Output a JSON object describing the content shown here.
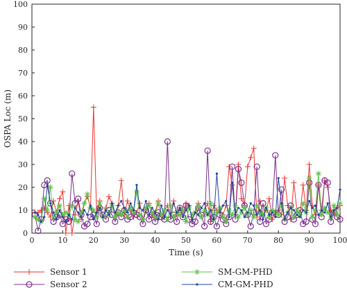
{
  "chart_data": {
    "type": "line",
    "title": "",
    "xlabel": "Time (s)",
    "ylabel": "OSPA Loc (m)",
    "xlim": [
      0,
      100
    ],
    "ylim": [
      0,
      100
    ],
    "xticks": [
      "0",
      "10",
      "20",
      "30",
      "40",
      "50",
      "60",
      "70",
      "80",
      "90",
      "100"
    ],
    "yticks": [
      "0",
      "10",
      "20",
      "30",
      "40",
      "50",
      "60",
      "70",
      "80",
      "90",
      "100"
    ],
    "grid": false,
    "legend_position": "bottom",
    "x": [
      1,
      2,
      3,
      4,
      5,
      6,
      7,
      8,
      9,
      10,
      11,
      12,
      13,
      14,
      15,
      16,
      17,
      18,
      19,
      20,
      21,
      22,
      23,
      24,
      25,
      26,
      27,
      28,
      29,
      30,
      31,
      32,
      33,
      34,
      35,
      36,
      37,
      38,
      39,
      40,
      41,
      42,
      43,
      44,
      45,
      46,
      47,
      48,
      49,
      50,
      51,
      52,
      53,
      54,
      55,
      56,
      57,
      58,
      59,
      60,
      61,
      62,
      63,
      64,
      65,
      66,
      67,
      68,
      69,
      70,
      71,
      72,
      73,
      74,
      75,
      76,
      77,
      78,
      79,
      80,
      81,
      82,
      83,
      84,
      85,
      86,
      87,
      88,
      89,
      90,
      91,
      92,
      93,
      94,
      95,
      96,
      97,
      98,
      99,
      100
    ],
    "series": [
      {
        "name": "Sensor 1",
        "color": "#e8322d",
        "marker": "plus",
        "values": [
          9,
          9,
          10,
          11,
          9,
          7,
          14,
          9,
          15,
          18,
          0,
          12,
          0,
          8,
          14,
          6,
          13,
          16,
          11,
          55,
          9,
          14,
          7,
          11,
          16,
          13,
          7,
          12,
          23,
          8,
          14,
          10,
          7,
          9,
          13,
          6,
          10,
          13,
          8,
          9,
          14,
          7,
          10,
          12,
          7,
          14,
          8,
          11,
          9,
          13,
          12,
          6,
          9,
          13,
          7,
          10,
          13,
          5,
          12,
          10,
          9,
          8,
          12,
          29,
          21,
          8,
          30,
          15,
          12,
          29,
          33,
          37,
          7,
          14,
          8,
          10,
          15,
          6,
          9,
          10,
          8,
          24,
          12,
          6,
          22,
          10,
          8,
          21,
          10,
          30,
          12,
          8,
          21,
          10,
          23,
          20,
          10,
          9,
          11,
          12
        ]
      },
      {
        "name": "Sensor 2",
        "color": "#7b2d8b",
        "marker": "circle",
        "values": [
          8,
          1,
          6,
          21,
          23,
          13,
          5,
          7,
          8,
          4,
          6,
          5,
          26,
          13,
          15,
          8,
          3,
          4,
          7,
          8,
          4,
          11,
          8,
          6,
          10,
          8,
          5,
          9,
          7,
          10,
          6,
          7,
          9,
          8,
          7,
          4,
          10,
          6,
          8,
          5,
          9,
          7,
          6,
          40,
          6,
          8,
          5,
          11,
          7,
          12,
          6,
          4,
          5,
          11,
          8,
          3,
          36,
          5,
          7,
          3,
          8,
          6,
          4,
          7,
          29,
          6,
          28,
          22,
          12,
          8,
          3,
          9,
          29,
          5,
          13,
          4,
          6,
          9,
          34,
          8,
          19,
          5,
          7,
          12,
          6,
          8,
          10,
          4,
          5,
          22,
          6,
          4,
          21,
          7,
          23,
          22,
          5,
          9,
          7,
          6
        ]
      },
      {
        "name": "SM-GM-PHD",
        "color": "#5ec24a",
        "marker": "star",
        "values": [
          7,
          6,
          5,
          15,
          10,
          20,
          7,
          9,
          12,
          8,
          9,
          8,
          12,
          6,
          5,
          9,
          13,
          17,
          11,
          10,
          7,
          13,
          7,
          10,
          8,
          12,
          7,
          9,
          8,
          10,
          7,
          11,
          9,
          18,
          8,
          6,
          11,
          12,
          9,
          7,
          13,
          8,
          10,
          6,
          12,
          7,
          9,
          8,
          10,
          5,
          11,
          8,
          9,
          12,
          7,
          10,
          8,
          13,
          6,
          9,
          11,
          7,
          5,
          10,
          8,
          12,
          7,
          9,
          11,
          8,
          10,
          7,
          12,
          9,
          8,
          11,
          7,
          10,
          9,
          8,
          12,
          6,
          9,
          11,
          7,
          10,
          8,
          13,
          9,
          24,
          7,
          10,
          26,
          8,
          11,
          9,
          7,
          12,
          8,
          13
        ]
      },
      {
        "name": "CM-GM-PHD",
        "color": "#24449a",
        "marker": "dot",
        "values": [
          9,
          8,
          5,
          7,
          21,
          13,
          9,
          6,
          10,
          7,
          5,
          8,
          6,
          11,
          9,
          7,
          10,
          8,
          12,
          6,
          9,
          11,
          7,
          10,
          8,
          13,
          9,
          12,
          14,
          11,
          9,
          13,
          10,
          21,
          11,
          10,
          14,
          8,
          11,
          9,
          6,
          12,
          7,
          10,
          8,
          13,
          9,
          11,
          7,
          10,
          12,
          6,
          9,
          8,
          11,
          13,
          8,
          10,
          6,
          26,
          9,
          12,
          14,
          7,
          22,
          8,
          11,
          10,
          7,
          9,
          13,
          12,
          8,
          10,
          6,
          11,
          8,
          9,
          7,
          24,
          13,
          6,
          9,
          11,
          10,
          8,
          7,
          10,
          9,
          14,
          11,
          12,
          8,
          10,
          9,
          13,
          7,
          10,
          11,
          19
        ]
      }
    ]
  }
}
